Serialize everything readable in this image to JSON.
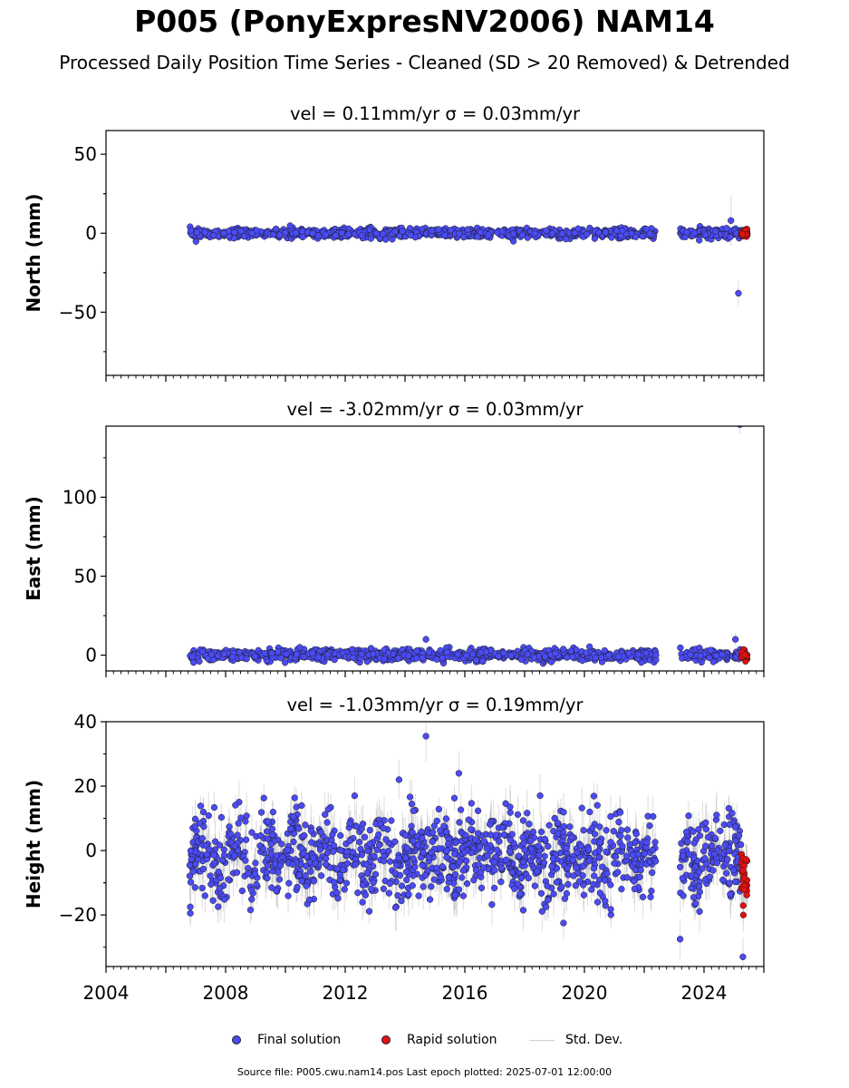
{
  "title": "P005 (PonyExpresNV2006) NAM14",
  "subtitle": "Processed Daily Position Time Series - Cleaned (SD > 20 Removed) & Detrended",
  "colors": {
    "final": "#4b4bf5",
    "rapid": "#e31010",
    "std_dev": "#cfcfcf"
  },
  "legend": {
    "final_label": "Final solution",
    "rapid_label": "Rapid solution",
    "std_label": "Std. Dev."
  },
  "footer": "Source file: P005.cwu.nam14.pos  Last epoch plotted: 2025-07-01 12:00:00",
  "chart_data": [
    {
      "type": "scatter",
      "title": "vel = 0.11mm/yr   σ = 0.03mm/yr",
      "ylabel": "North (mm)",
      "xlim": [
        2004,
        2026
      ],
      "ylim": [
        -90,
        65
      ],
      "yticks": [
        -50,
        0,
        50
      ],
      "ytick_labels": [
        "−50",
        "0",
        "50"
      ],
      "xtick_labels": [],
      "data_span": [
        2006.8,
        2025.45
      ],
      "gap": [
        2022.4,
        2023.2
      ],
      "rapid_span": [
        2025.25,
        2025.45
      ],
      "series_noise": {
        "center": 0,
        "spread": 1.5,
        "err": 2
      },
      "outliers": [
        {
          "x": 2025.15,
          "y": -38,
          "err": 8
        },
        {
          "x": 2024.9,
          "y": 8,
          "err": 16
        }
      ]
    },
    {
      "type": "scatter",
      "title": "vel = -3.02mm/yr   σ = 0.03mm/yr",
      "ylabel": "East (mm)",
      "xlim": [
        2004,
        2026
      ],
      "ylim": [
        -10,
        145
      ],
      "yticks": [
        0,
        50,
        100
      ],
      "ytick_labels": [
        "0",
        "50",
        "100"
      ],
      "xtick_labels": [],
      "data_span": [
        2006.8,
        2025.45
      ],
      "gap": [
        2022.4,
        2023.2
      ],
      "rapid_span": [
        2025.25,
        2025.45
      ],
      "series_noise": {
        "center": 0,
        "spread": 1.8,
        "err": 2
      },
      "outliers": [
        {
          "x": 2025.2,
          "y": 146,
          "err": 6
        },
        {
          "x": 2014.7,
          "y": 10,
          "err": 3
        },
        {
          "x": 2025.05,
          "y": 10,
          "err": 4
        }
      ]
    },
    {
      "type": "scatter",
      "title": "vel = -1.03mm/yr   σ = 0.19mm/yr",
      "ylabel": "Height (mm)",
      "xlim": [
        2004,
        2026
      ],
      "ylim": [
        -36,
        40
      ],
      "yticks": [
        -20,
        0,
        20,
        40
      ],
      "ytick_labels": [
        "−20",
        "0",
        "20",
        "40"
      ],
      "xticks": [
        2004,
        2008,
        2012,
        2016,
        2020,
        2024
      ],
      "xtick_labels": [
        "2004",
        "2008",
        "2012",
        "2016",
        "2020",
        "2024"
      ],
      "data_span": [
        2006.8,
        2025.45
      ],
      "gap": [
        2022.4,
        2023.2
      ],
      "rapid_span": [
        2025.25,
        2025.45
      ],
      "series_noise": {
        "center": -2,
        "spread": 6.5,
        "err": 5
      },
      "outliers": [
        {
          "x": 2014.7,
          "y": 35.5,
          "err": 8
        },
        {
          "x": 2013.8,
          "y": 22,
          "err": 6
        },
        {
          "x": 2015.8,
          "y": 24,
          "err": 7
        },
        {
          "x": 2023.2,
          "y": -27.5,
          "err": 6
        },
        {
          "x": 2025.3,
          "y": -33,
          "err": 6
        },
        {
          "x": 2019.3,
          "y": -22.5,
          "err": 5
        }
      ]
    }
  ]
}
